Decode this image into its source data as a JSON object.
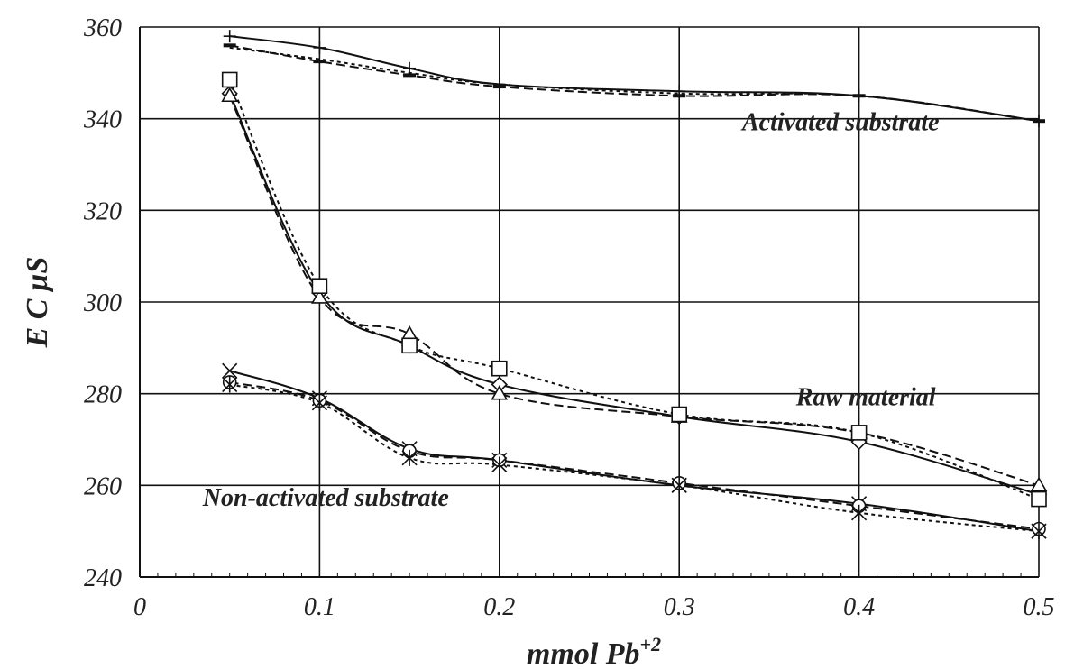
{
  "chart_data": {
    "type": "line",
    "xlabel": "mmol Pb",
    "xlabel_sup": "+2",
    "ylabel": "E C  µS",
    "xlim": [
      0,
      0.5
    ],
    "ylim": [
      240,
      360
    ],
    "xticks": [
      "0",
      "0.1",
      "0.2",
      "0.3",
      "0.4",
      "0.5"
    ],
    "yticks": [
      "240",
      "260",
      "280",
      "300",
      "320",
      "340",
      "360"
    ],
    "grid": true,
    "annotations": [
      {
        "text": "Activated substrate",
        "x": 0.335,
        "y": 337.5
      },
      {
        "text": "Raw material",
        "x": 0.365,
        "y": 277.5
      },
      {
        "text": "Non-activated substrate",
        "x": 0.035,
        "y": 255.5
      }
    ],
    "series": [
      {
        "group": "activated",
        "style": "solid",
        "marker": "plus",
        "points": [
          [
            0.05,
            358
          ],
          [
            0.1,
            355.5
          ],
          [
            0.15,
            351
          ],
          [
            0.2,
            347.5
          ],
          [
            0.3,
            346
          ],
          [
            0.4,
            345
          ],
          [
            0.5,
            339.5
          ]
        ]
      },
      {
        "group": "activated",
        "style": "dashed",
        "marker": "dash",
        "points": [
          [
            0.05,
            356
          ],
          [
            0.1,
            352.5
          ],
          [
            0.15,
            349.5
          ],
          [
            0.2,
            347
          ],
          [
            0.3,
            345
          ],
          [
            0.4,
            345
          ],
          [
            0.5,
            339.5
          ]
        ]
      },
      {
        "group": "activated",
        "style": "dotted",
        "marker": "none",
        "points": [
          [
            0.05,
            355.5
          ],
          [
            0.1,
            353
          ],
          [
            0.15,
            350
          ],
          [
            0.2,
            347.5
          ],
          [
            0.3,
            345.5
          ],
          [
            0.4,
            345
          ],
          [
            0.5,
            339.5
          ]
        ]
      },
      {
        "group": "raw",
        "style": "solid",
        "marker": "diamond",
        "points": [
          [
            0.05,
            345.5
          ],
          [
            0.1,
            302
          ],
          [
            0.15,
            290.5
          ],
          [
            0.2,
            282
          ],
          [
            0.3,
            275
          ],
          [
            0.4,
            269.5
          ],
          [
            0.5,
            258
          ]
        ]
      },
      {
        "group": "raw",
        "style": "dashed",
        "marker": "triangle",
        "points": [
          [
            0.05,
            345
          ],
          [
            0.1,
            301
          ],
          [
            0.15,
            293
          ],
          [
            0.2,
            280
          ],
          [
            0.3,
            275
          ],
          [
            0.4,
            271.5
          ],
          [
            0.5,
            260
          ]
        ]
      },
      {
        "group": "raw",
        "style": "dotted",
        "marker": "square",
        "points": [
          [
            0.05,
            348.5
          ],
          [
            0.1,
            303.5
          ],
          [
            0.15,
            290.5
          ],
          [
            0.2,
            285.5
          ],
          [
            0.3,
            275.5
          ],
          [
            0.4,
            271.5
          ],
          [
            0.5,
            257
          ]
        ]
      },
      {
        "group": "nonactivated",
        "style": "solid",
        "marker": "x",
        "points": [
          [
            0.05,
            285
          ],
          [
            0.1,
            279
          ],
          [
            0.15,
            268
          ],
          [
            0.2,
            265.5
          ],
          [
            0.3,
            260
          ],
          [
            0.4,
            256
          ],
          [
            0.5,
            250
          ]
        ]
      },
      {
        "group": "nonactivated",
        "style": "dashed",
        "marker": "circle",
        "points": [
          [
            0.05,
            282.5
          ],
          [
            0.1,
            278.5
          ],
          [
            0.15,
            267.5
          ],
          [
            0.2,
            265.5
          ],
          [
            0.3,
            260.5
          ],
          [
            0.4,
            255.5
          ],
          [
            0.5,
            250.5
          ]
        ]
      },
      {
        "group": "nonactivated",
        "style": "dotted",
        "marker": "star",
        "points": [
          [
            0.05,
            282
          ],
          [
            0.1,
            278
          ],
          [
            0.15,
            266
          ],
          [
            0.2,
            264.5
          ],
          [
            0.3,
            260
          ],
          [
            0.4,
            254
          ],
          [
            0.5,
            250
          ]
        ]
      }
    ]
  }
}
